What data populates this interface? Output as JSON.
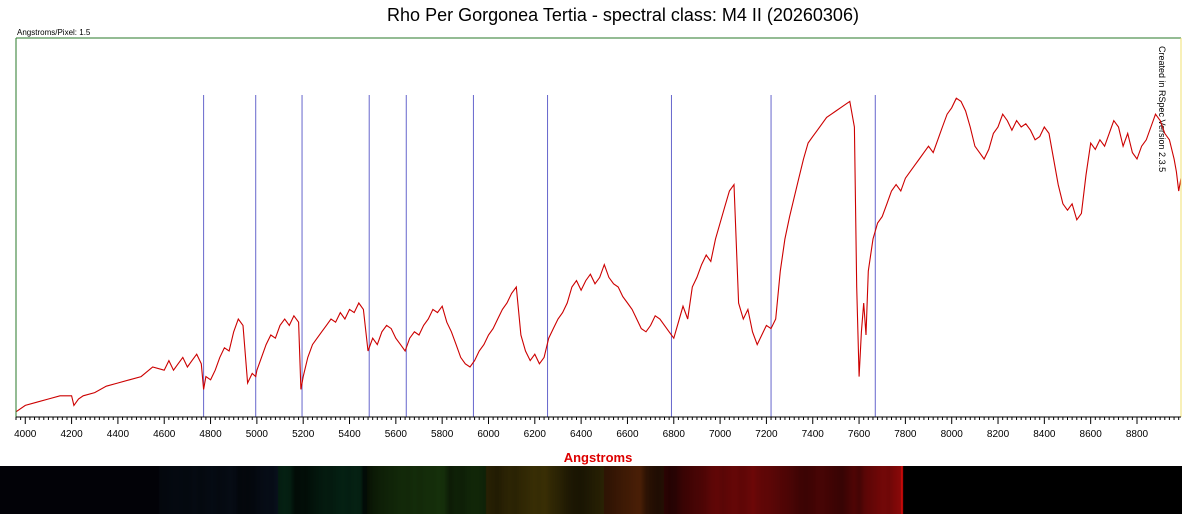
{
  "chart_data": {
    "type": "line",
    "title": "Rho Per Gorgonea Tertia - spectral class: M4 II (20260306)",
    "xlabel": "Angstroms",
    "ylabel": "",
    "xlim": [
      3960,
      8990
    ],
    "ylim": [
      0,
      1.0
    ],
    "grid": false,
    "legend": "none",
    "info_label": "Angstroms/Pixel: 1.5",
    "credit": "Created in RSpec Version 2.3.5",
    "line_color": "#cc0000",
    "marker_color": "#6666cc",
    "frame_color": "#2a7a2a",
    "x_ticks": [
      4000,
      4200,
      4400,
      4600,
      4800,
      5000,
      5200,
      5400,
      5600,
      5800,
      6000,
      6200,
      6400,
      6600,
      6800,
      7000,
      7200,
      7400,
      7600,
      7800,
      8000,
      8200,
      8400,
      8600,
      8800
    ],
    "x_tick_labels": [
      "4000",
      "4200",
      "4400",
      "4600",
      "4800",
      "5000",
      "5200",
      "5400",
      "5600",
      "5800",
      "6000",
      "6200",
      "6400",
      "6600",
      "6800",
      "7000",
      "7200",
      "7400",
      "7600",
      "7800",
      "8000",
      "8200",
      "8400",
      "8600",
      "8800"
    ],
    "marker_lines": [
      4770,
      4995,
      5195,
      5485,
      5645,
      5935,
      6255,
      6790,
      7220,
      7670
    ],
    "series": [
      {
        "x": [
          3960,
          4000,
          4050,
          4100,
          4150,
          4200,
          4210,
          4230,
          4250,
          4300,
          4350,
          4400,
          4450,
          4500,
          4550,
          4600,
          4620,
          4640,
          4660,
          4680,
          4700,
          4720,
          4740,
          4760,
          4770,
          4780,
          4800,
          4820,
          4840,
          4860,
          4880,
          4900,
          4920,
          4940,
          4960,
          4980,
          4995,
          5000,
          5020,
          5040,
          5060,
          5080,
          5100,
          5120,
          5140,
          5160,
          5180,
          5190,
          5200,
          5220,
          5240,
          5260,
          5280,
          5300,
          5320,
          5340,
          5360,
          5380,
          5400,
          5420,
          5440,
          5460,
          5480,
          5500,
          5520,
          5540,
          5560,
          5580,
          5600,
          5620,
          5640,
          5660,
          5680,
          5700,
          5720,
          5740,
          5760,
          5780,
          5800,
          5820,
          5840,
          5860,
          5880,
          5900,
          5920,
          5940,
          5960,
          5980,
          6000,
          6020,
          6040,
          6060,
          6080,
          6100,
          6120,
          6140,
          6160,
          6180,
          6200,
          6220,
          6240,
          6260,
          6280,
          6300,
          6320,
          6340,
          6360,
          6380,
          6400,
          6420,
          6440,
          6460,
          6480,
          6500,
          6520,
          6540,
          6560,
          6580,
          6600,
          6620,
          6640,
          6660,
          6680,
          6700,
          6720,
          6740,
          6760,
          6780,
          6800,
          6820,
          6840,
          6860,
          6880,
          6900,
          6920,
          6940,
          6960,
          6980,
          7000,
          7020,
          7040,
          7060,
          7080,
          7100,
          7120,
          7140,
          7160,
          7180,
          7200,
          7220,
          7240,
          7260,
          7280,
          7300,
          7320,
          7340,
          7360,
          7380,
          7400,
          7420,
          7440,
          7460,
          7480,
          7500,
          7520,
          7540,
          7560,
          7580,
          7590,
          7600,
          7610,
          7620,
          7630,
          7640,
          7660,
          7680,
          7700,
          7720,
          7740,
          7760,
          7780,
          7800,
          7820,
          7840,
          7860,
          7880,
          7900,
          7920,
          7940,
          7960,
          7980,
          8000,
          8020,
          8040,
          8060,
          8080,
          8100,
          8120,
          8140,
          8160,
          8180,
          8200,
          8220,
          8240,
          8260,
          8280,
          8300,
          8320,
          8340,
          8360,
          8380,
          8400,
          8420,
          8440,
          8460,
          8480,
          8500,
          8520,
          8540,
          8560,
          8580,
          8600,
          8620,
          8640,
          8660,
          8680,
          8700,
          8720,
          8740,
          8760,
          8780,
          8800,
          8820,
          8840,
          8860,
          8880,
          8900,
          8920,
          8940,
          8960,
          8970,
          8980,
          8990
        ],
        "y": [
          0.01,
          0.03,
          0.04,
          0.05,
          0.06,
          0.06,
          0.03,
          0.05,
          0.06,
          0.07,
          0.09,
          0.1,
          0.11,
          0.12,
          0.15,
          0.14,
          0.17,
          0.14,
          0.16,
          0.18,
          0.15,
          0.17,
          0.19,
          0.16,
          0.08,
          0.12,
          0.11,
          0.14,
          0.18,
          0.21,
          0.2,
          0.26,
          0.3,
          0.28,
          0.1,
          0.13,
          0.12,
          0.14,
          0.18,
          0.22,
          0.25,
          0.24,
          0.28,
          0.3,
          0.28,
          0.31,
          0.29,
          0.08,
          0.12,
          0.18,
          0.22,
          0.24,
          0.26,
          0.28,
          0.3,
          0.29,
          0.32,
          0.3,
          0.33,
          0.32,
          0.35,
          0.33,
          0.2,
          0.24,
          0.22,
          0.26,
          0.28,
          0.27,
          0.24,
          0.22,
          0.2,
          0.24,
          0.26,
          0.25,
          0.28,
          0.3,
          0.33,
          0.32,
          0.34,
          0.29,
          0.26,
          0.22,
          0.18,
          0.16,
          0.15,
          0.17,
          0.2,
          0.22,
          0.25,
          0.27,
          0.3,
          0.33,
          0.35,
          0.38,
          0.4,
          0.25,
          0.2,
          0.17,
          0.19,
          0.16,
          0.18,
          0.24,
          0.27,
          0.3,
          0.32,
          0.35,
          0.4,
          0.42,
          0.39,
          0.42,
          0.44,
          0.41,
          0.43,
          0.47,
          0.43,
          0.41,
          0.4,
          0.37,
          0.35,
          0.33,
          0.3,
          0.27,
          0.26,
          0.28,
          0.31,
          0.3,
          0.28,
          0.26,
          0.24,
          0.29,
          0.34,
          0.3,
          0.4,
          0.43,
          0.47,
          0.5,
          0.48,
          0.55,
          0.6,
          0.65,
          0.7,
          0.72,
          0.35,
          0.3,
          0.33,
          0.26,
          0.22,
          0.25,
          0.28,
          0.27,
          0.3,
          0.45,
          0.55,
          0.62,
          0.68,
          0.74,
          0.8,
          0.85,
          0.87,
          0.89,
          0.91,
          0.93,
          0.94,
          0.95,
          0.96,
          0.97,
          0.98,
          0.9,
          0.4,
          0.12,
          0.26,
          0.35,
          0.25,
          0.45,
          0.55,
          0.6,
          0.62,
          0.66,
          0.7,
          0.72,
          0.7,
          0.74,
          0.76,
          0.78,
          0.8,
          0.82,
          0.84,
          0.82,
          0.86,
          0.9,
          0.94,
          0.96,
          0.99,
          0.98,
          0.95,
          0.9,
          0.84,
          0.82,
          0.8,
          0.83,
          0.88,
          0.9,
          0.94,
          0.92,
          0.89,
          0.92,
          0.9,
          0.91,
          0.89,
          0.86,
          0.87,
          0.9,
          0.88,
          0.8,
          0.72,
          0.66,
          0.64,
          0.66,
          0.61,
          0.63,
          0.75,
          0.85,
          0.83,
          0.86,
          0.84,
          0.88,
          0.92,
          0.9,
          0.84,
          0.88,
          0.82,
          0.8,
          0.84,
          0.86,
          0.9,
          0.94,
          0.92,
          0.88,
          0.86,
          0.8,
          0.76,
          0.7,
          0.74
        ]
      }
    ]
  }
}
